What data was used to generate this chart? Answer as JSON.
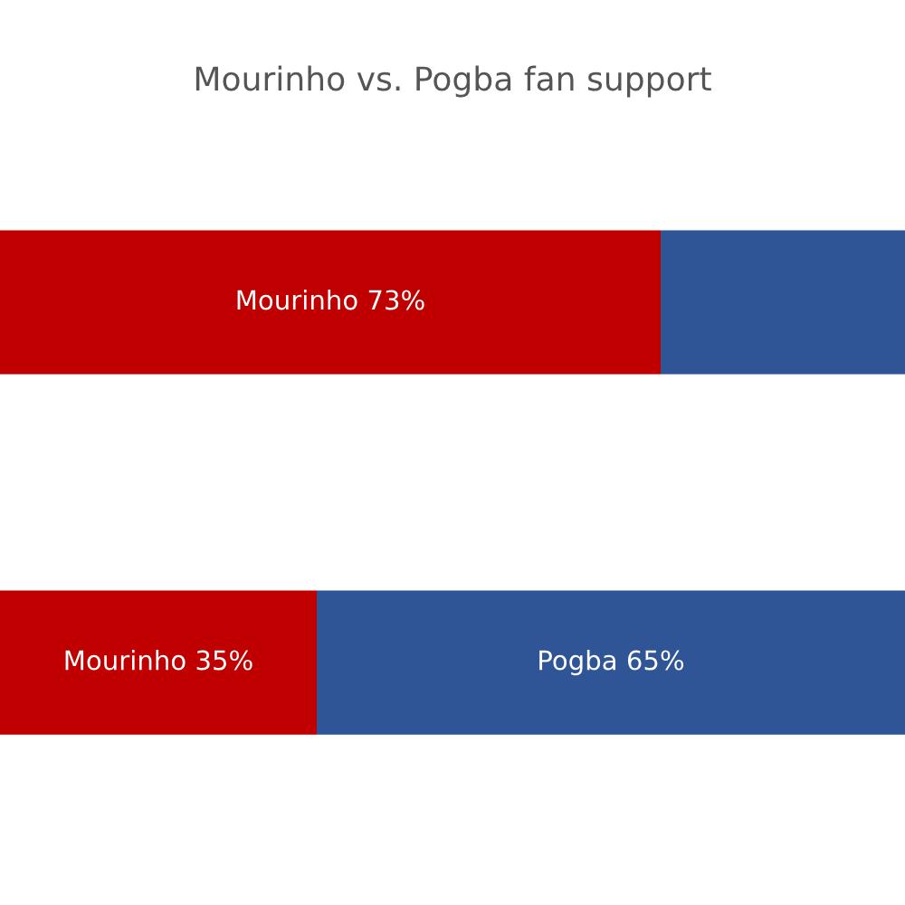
{
  "chart_data": {
    "type": "bar",
    "orientation": "horizontal",
    "stacked": true,
    "title": "Mourinho vs. Pogba fan support",
    "categories": [
      null,
      null
    ],
    "xlim": [
      0,
      100
    ],
    "tick_labels": false,
    "series": [
      {
        "color": "#c00000",
        "values": [
          73,
          35
        ],
        "value_labels": [
          "Mourinho 73%",
          "Mourinho 35%"
        ]
      },
      {
        "color": "#2f5597",
        "values": [
          27,
          65
        ],
        "value_labels": [
          null,
          "Pogba 65%"
        ]
      }
    ]
  }
}
